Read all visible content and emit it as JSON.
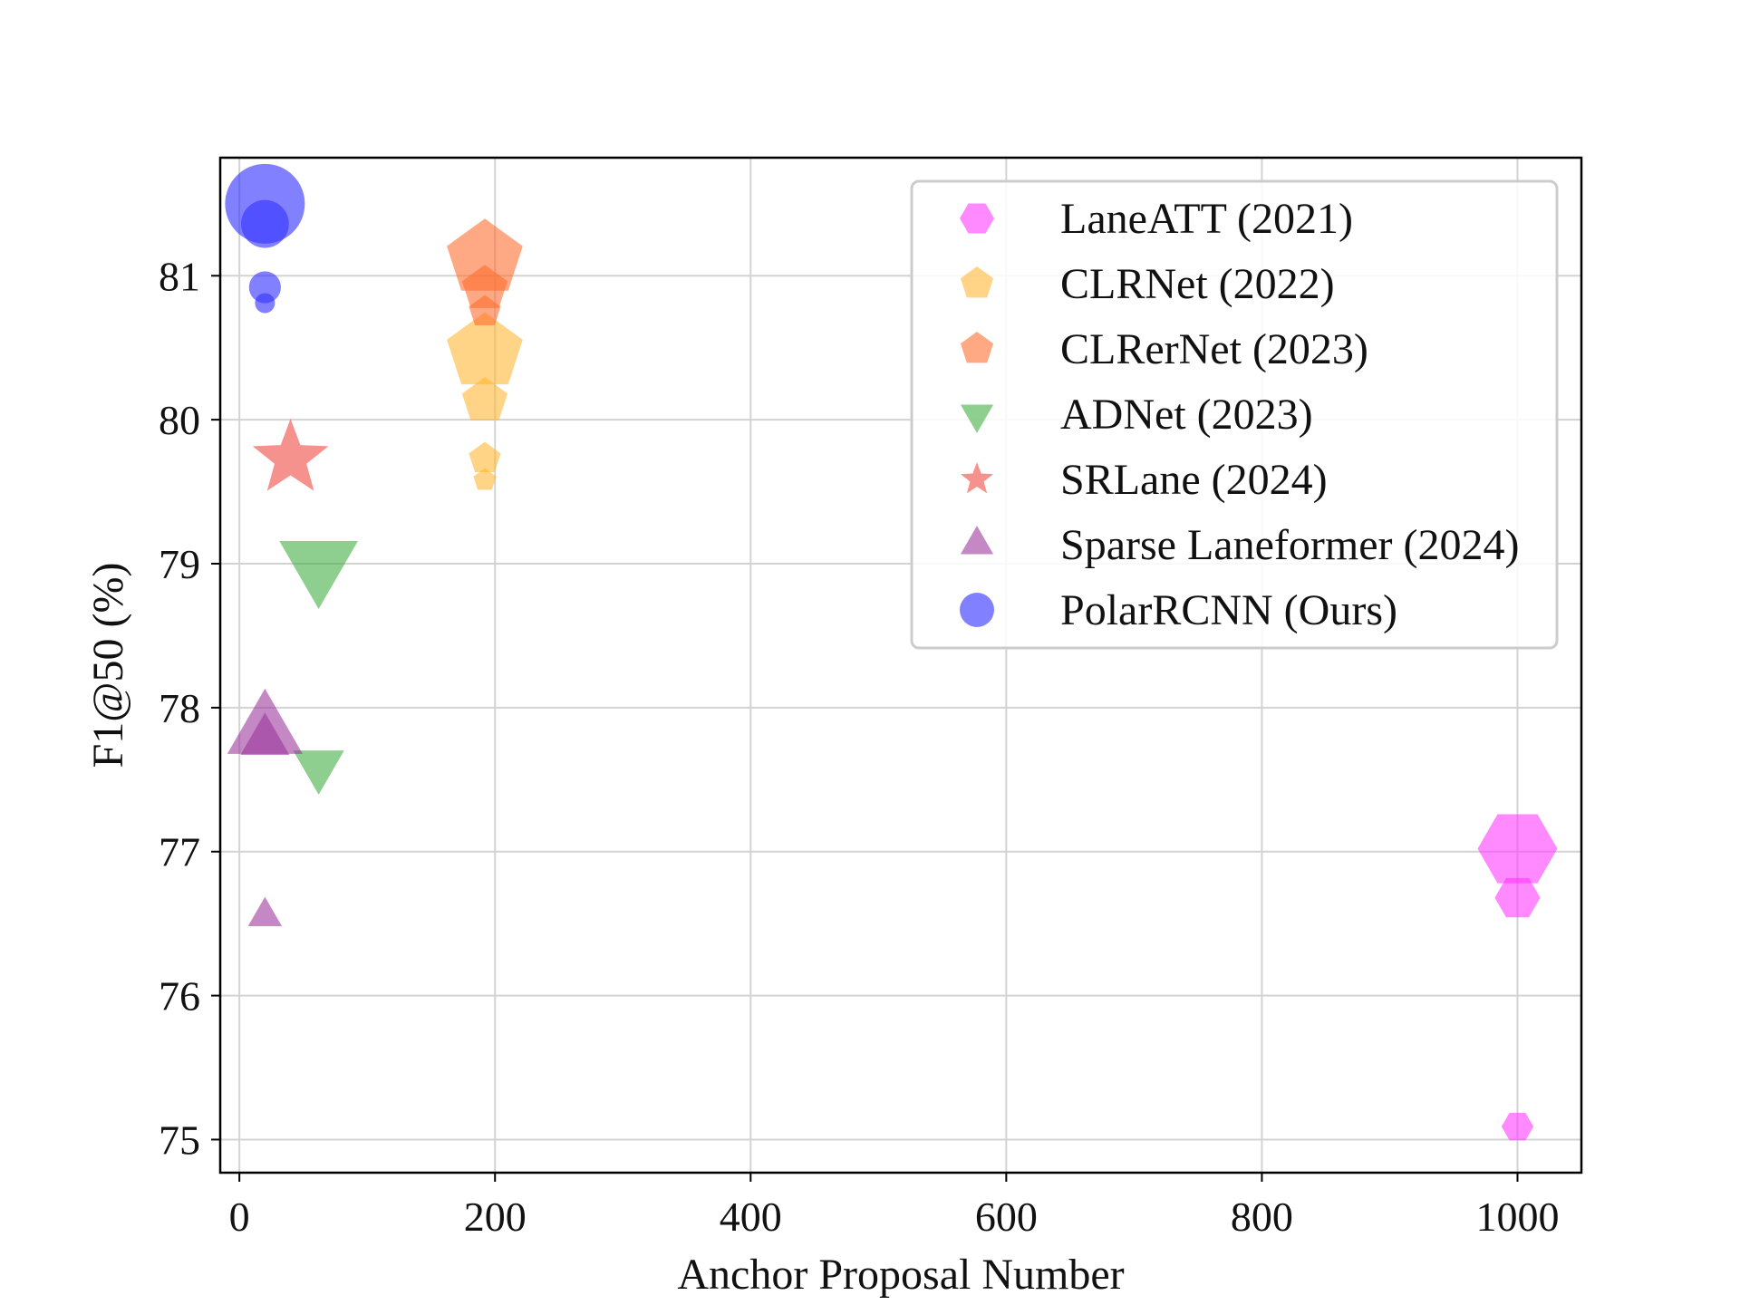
{
  "chart_data": {
    "type": "scatter",
    "xlabel": "Anchor Proposal Number",
    "ylabel": "F1@50 (%)",
    "xlim": [
      -15,
      1050
    ],
    "ylim": [
      74.77,
      81.82
    ],
    "xticks": [
      0,
      200,
      400,
      600,
      800,
      1000
    ],
    "yticks": [
      75,
      76,
      77,
      78,
      79,
      80,
      81
    ],
    "grid": true,
    "legend_position": "top-right",
    "series": [
      {
        "name": "LaneATT (2021)",
        "marker": "hexagon",
        "color": "#ff33ff",
        "points": [
          {
            "x": 1000,
            "y": 77.02,
            "size": 1.0
          },
          {
            "x": 1000,
            "y": 76.68,
            "size": 0.57
          },
          {
            "x": 1000,
            "y": 75.09,
            "size": 0.4
          }
        ]
      },
      {
        "name": "CLRNet (2022)",
        "marker": "pentagon",
        "color": "#ffb52e",
        "points": [
          {
            "x": 192,
            "y": 80.47,
            "size": 1.0
          },
          {
            "x": 192,
            "y": 80.13,
            "size": 0.6
          },
          {
            "x": 192,
            "y": 79.73,
            "size": 0.42
          },
          {
            "x": 192,
            "y": 79.58,
            "size": 0.3
          }
        ]
      },
      {
        "name": "CLRerNet (2023)",
        "marker": "pentagon",
        "color": "#ff6a2b",
        "points": [
          {
            "x": 192,
            "y": 81.12,
            "size": 1.0
          },
          {
            "x": 192,
            "y": 80.91,
            "size": 0.6
          },
          {
            "x": 192,
            "y": 80.75,
            "size": 0.42
          }
        ]
      },
      {
        "name": "ADNet (2023)",
        "marker": "triangle-down",
        "color": "#3caa3c",
        "points": [
          {
            "x": 62,
            "y": 79.0,
            "size": 1.0
          },
          {
            "x": 62,
            "y": 77.6,
            "size": 0.65
          }
        ]
      },
      {
        "name": "SRLane (2024)",
        "marker": "star",
        "color": "#f0443d",
        "points": [
          {
            "x": 40,
            "y": 79.73,
            "size": 1.0
          }
        ]
      },
      {
        "name": "Sparse Laneformer (2024)",
        "marker": "triangle-up",
        "color": "#993399",
        "points": [
          {
            "x": 20,
            "y": 77.83,
            "size": 1.0
          },
          {
            "x": 20,
            "y": 77.77,
            "size": 0.65
          },
          {
            "x": 20,
            "y": 76.55,
            "size": 0.45
          }
        ]
      },
      {
        "name": "PolarRCNN (Ours)",
        "marker": "circle",
        "color": "#3333ff",
        "points": [
          {
            "x": 20,
            "y": 81.5,
            "size": 1.0
          },
          {
            "x": 20,
            "y": 81.36,
            "size": 0.6
          },
          {
            "x": 20,
            "y": 80.92,
            "size": 0.4
          },
          {
            "x": 20,
            "y": 80.81,
            "size": 0.25
          }
        ]
      }
    ]
  }
}
